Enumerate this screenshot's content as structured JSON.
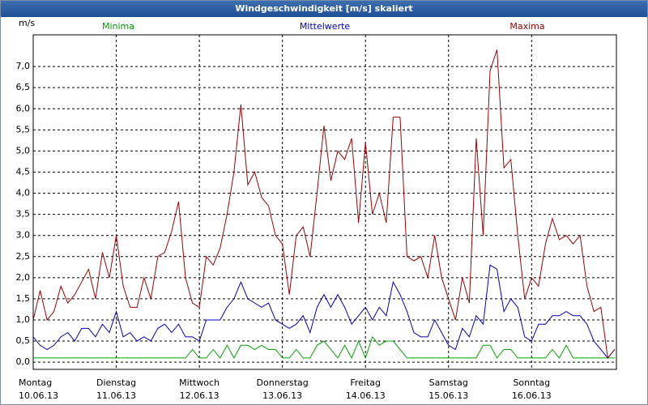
{
  "window_title": "Windgeschwindigkeit [m/s] skaliert",
  "chart_data": {
    "type": "line",
    "y_unit": "m/s",
    "x": [
      0,
      2,
      4,
      6,
      8,
      10,
      12,
      14,
      16,
      18,
      20,
      22,
      24,
      26,
      28,
      30,
      32,
      34,
      36,
      38,
      40,
      42,
      44,
      46,
      48,
      50,
      52,
      54,
      56,
      58,
      60,
      62,
      64,
      66,
      68,
      70,
      72,
      74,
      76,
      78,
      80,
      82,
      84,
      86,
      88,
      90,
      92,
      94,
      96,
      98,
      100,
      102,
      104,
      106,
      108,
      110,
      112,
      114,
      116,
      118,
      120,
      122,
      124,
      126,
      128,
      130,
      132,
      134,
      136,
      138,
      140,
      142,
      144,
      146,
      148,
      150,
      152,
      154,
      156,
      158,
      160,
      162,
      164,
      166,
      168
    ],
    "xlim": [
      0,
      168.5
    ],
    "xticks": [
      {
        "value": 0,
        "label": [
          "Montag",
          "10.06.13"
        ]
      },
      {
        "value": 24,
        "label": [
          "Dienstag",
          "11.06.13"
        ]
      },
      {
        "value": 48,
        "label": [
          "Mittwoch",
          "12.06.13"
        ]
      },
      {
        "value": 72,
        "label": [
          "Donnerstag",
          "13.06.13"
        ]
      },
      {
        "value": 96,
        "label": [
          "Freitag",
          "14.06.13"
        ]
      },
      {
        "value": 120,
        "label": [
          "Samstag",
          "15.06.13"
        ]
      },
      {
        "value": 144,
        "label": [
          "Sonntag",
          "16.06.13"
        ]
      }
    ],
    "ylim": [
      -0.17,
      7.75
    ],
    "yticks": [
      {
        "value": 0,
        "label": "0,0"
      },
      {
        "value": 0.5,
        "label": "0,5"
      },
      {
        "value": 1,
        "label": "1,0"
      },
      {
        "value": 1.5,
        "label": "1,5"
      },
      {
        "value": 2,
        "label": "2,0"
      },
      {
        "value": 2.5,
        "label": "2,5"
      },
      {
        "value": 3,
        "label": "3,0"
      },
      {
        "value": 3.5,
        "label": "3,5"
      },
      {
        "value": 4,
        "label": "4,0"
      },
      {
        "value": 4.5,
        "label": "4,5"
      },
      {
        "value": 5,
        "label": "5,0"
      },
      {
        "value": 5.5,
        "label": "5,5"
      },
      {
        "value": 6,
        "label": "6,0"
      },
      {
        "value": 6.5,
        "label": "6,5"
      },
      {
        "value": 7,
        "label": "7,0"
      }
    ],
    "grid": true,
    "series": [
      {
        "name": "Minima",
        "color": "#00a000",
        "values": [
          0.1,
          0.1,
          0.1,
          0.1,
          0.1,
          0.1,
          0.1,
          0.1,
          0.1,
          0.1,
          0.1,
          0.1,
          0.1,
          0.1,
          0.1,
          0.1,
          0.1,
          0.1,
          0.1,
          0.1,
          0.1,
          0.1,
          0.1,
          0.3,
          0.1,
          0.1,
          0.3,
          0.1,
          0.4,
          0.1,
          0.4,
          0.4,
          0.3,
          0.4,
          0.3,
          0.3,
          0.1,
          0.1,
          0.3,
          0.1,
          0.1,
          0.4,
          0.5,
          0.3,
          0.1,
          0.4,
          0.1,
          0.5,
          0.1,
          0.6,
          0.4,
          0.5,
          0.5,
          0.3,
          0.1,
          0.1,
          0.1,
          0.1,
          0.1,
          0.1,
          0.1,
          0.1,
          0.1,
          0.1,
          0.1,
          0.4,
          0.4,
          0.1,
          0.3,
          0.3,
          0.1,
          0.1,
          0.1,
          0.1,
          0.1,
          0.3,
          0.1,
          0.4,
          0.1,
          0.1,
          0.1,
          0.1,
          0.1,
          0.1,
          0.1
        ]
      },
      {
        "name": "Mittelwerte",
        "color": "#0000c0",
        "values": [
          0.6,
          0.4,
          0.3,
          0.4,
          0.6,
          0.7,
          0.5,
          0.8,
          0.8,
          0.6,
          0.9,
          0.7,
          1.2,
          0.6,
          0.7,
          0.5,
          0.6,
          0.5,
          0.8,
          0.9,
          0.7,
          0.9,
          0.6,
          0.6,
          0.5,
          1.0,
          1.0,
          1.0,
          1.3,
          1.5,
          1.9,
          1.5,
          1.4,
          1.3,
          1.4,
          1.0,
          0.9,
          0.8,
          0.9,
          1.1,
          0.7,
          1.3,
          1.6,
          1.3,
          1.6,
          1.3,
          0.9,
          1.1,
          1.3,
          1.0,
          1.3,
          1.1,
          1.9,
          1.6,
          1.2,
          0.7,
          0.6,
          0.6,
          1.0,
          0.7,
          0.4,
          0.3,
          0.8,
          0.6,
          1.1,
          0.9,
          2.3,
          2.2,
          1.2,
          1.5,
          1.3,
          0.6,
          0.5,
          0.9,
          0.9,
          1.1,
          1.1,
          1.2,
          1.1,
          1.1,
          0.9,
          0.5,
          0.3,
          0.1,
          0.3
        ]
      },
      {
        "name": "Maxima",
        "color": "#a00000",
        "values": [
          1.0,
          1.7,
          1.0,
          1.2,
          1.8,
          1.4,
          1.6,
          1.9,
          2.2,
          1.5,
          2.6,
          2.0,
          3.0,
          1.8,
          1.3,
          1.3,
          2.0,
          1.5,
          2.5,
          2.6,
          3.1,
          3.8,
          2.0,
          1.4,
          1.3,
          2.5,
          2.3,
          2.7,
          3.5,
          4.5,
          6.1,
          4.2,
          4.5,
          3.9,
          3.7,
          3.0,
          2.8,
          1.6,
          3.0,
          3.2,
          2.5,
          4.0,
          5.6,
          4.3,
          5.0,
          4.8,
          5.3,
          3.3,
          5.2,
          3.5,
          4.0,
          3.3,
          5.8,
          5.8,
          2.5,
          2.4,
          2.5,
          2.0,
          3.0,
          2.0,
          1.5,
          1.0,
          2.0,
          1.4,
          5.3,
          3.0,
          6.9,
          7.4,
          4.6,
          4.8,
          3.0,
          1.5,
          2.0,
          1.8,
          2.8,
          3.4,
          2.9,
          3.0,
          2.8,
          3.0,
          1.8,
          1.2,
          1.3,
          0.1,
          0.3
        ]
      }
    ]
  }
}
